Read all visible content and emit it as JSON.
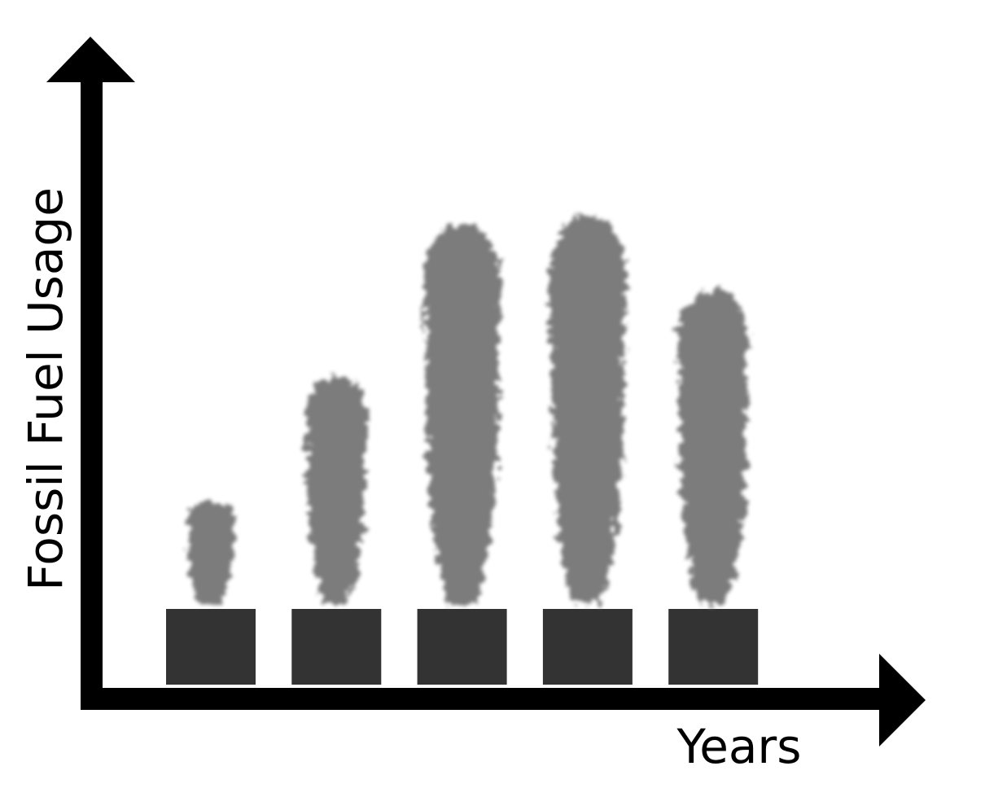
{
  "chart_data": {
    "type": "bar",
    "xlabel": "Years",
    "ylabel": "Fossil Fuel Usage",
    "categories": [
      "",
      "",
      "",
      "",
      ""
    ],
    "values": [
      1.4,
      3.1,
      5.2,
      5.3,
      4.3
    ],
    "ylim": [
      0,
      6
    ],
    "grid": false,
    "legend": "none",
    "tick_labels": false
  },
  "style": {
    "axis_color": "#000000",
    "factory_color": "#333333",
    "smoke_color": "#757575",
    "background": "#ffffff"
  }
}
